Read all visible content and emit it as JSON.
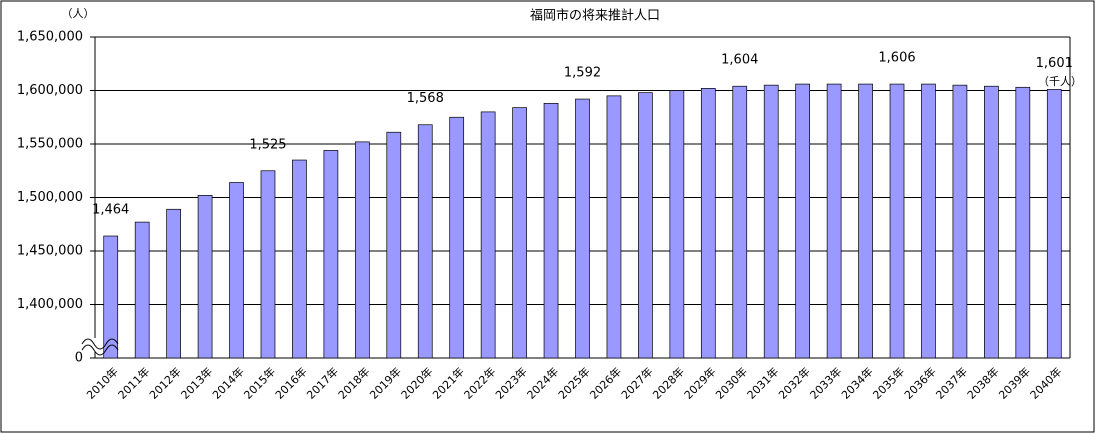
{
  "chart_data": {
    "type": "bar",
    "title": "福岡市の将来推計人口",
    "y_unit": "（人）",
    "label_unit": "（千人）",
    "categories": [
      "2010年",
      "2011年",
      "2012年",
      "2013年",
      "2014年",
      "2015年",
      "2016年",
      "2017年",
      "2018年",
      "2019年",
      "2020年",
      "2021年",
      "2022年",
      "2023年",
      "2024年",
      "2025年",
      "2026年",
      "2027年",
      "2028年",
      "2029年",
      "2030年",
      "2031年",
      "2032年",
      "2033年",
      "2034年",
      "2035年",
      "2036年",
      "2037年",
      "2038年",
      "2039年",
      "2040年"
    ],
    "values": [
      1464000,
      1477000,
      1489000,
      1502000,
      1514000,
      1525000,
      1535000,
      1544000,
      1552000,
      1561000,
      1568000,
      1575000,
      1580000,
      1584000,
      1588000,
      1592000,
      1595000,
      1598000,
      1600000,
      1602000,
      1604000,
      1605000,
      1606000,
      1606000,
      1606000,
      1606000,
      1606000,
      1605000,
      1604000,
      1603000,
      1601000
    ],
    "value_labels": [
      "1,464",
      null,
      null,
      null,
      null,
      "1,525",
      null,
      null,
      null,
      null,
      "1,568",
      null,
      null,
      null,
      null,
      "1,592",
      null,
      null,
      null,
      null,
      "1,604",
      null,
      null,
      null,
      null,
      "1,606",
      null,
      null,
      null,
      null,
      "1,601"
    ],
    "color": "#9999ff",
    "ylim": [
      1350000,
      1650000
    ],
    "yticks": [
      0,
      {
        "value": 1400000,
        "label": "1,400,000"
      },
      {
        "value": 1450000,
        "label": "1,450,000"
      },
      {
        "value": 1500000,
        "label": "1,500,000"
      },
      {
        "value": 1550000,
        "label": "1,550,000"
      },
      {
        "value": 1600000,
        "label": "1,600,000"
      },
      {
        "value": 1650000,
        "label": "1,650,000"
      }
    ],
    "grid": true
  }
}
